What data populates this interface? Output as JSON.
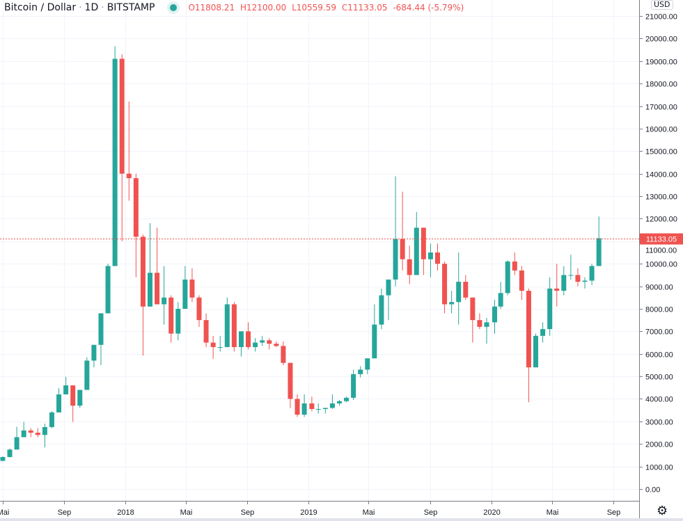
{
  "header": {
    "symbol": "Bitcoin / Dollar",
    "interval": "1D",
    "exchange": "BITSTAMP",
    "status_color": "#26a69a",
    "open": "O11808.21",
    "high": "H12100.00",
    "low": "L10559.59",
    "close": "C11133.05",
    "change": "-684.44 (-5.79%)"
  },
  "currency_button": "USD",
  "settings_icon": "gear-icon",
  "chart_data": {
    "type": "candlestick",
    "title": "Bitcoin / Dollar · 1D · BITSTAMP",
    "ylim": [
      0,
      21000
    ],
    "grid": true,
    "colors": {
      "up": "#26a69a",
      "down": "#ef5350",
      "price_line": "#ef5350"
    },
    "last_price": 11133.05,
    "last_price_label": "11133.05",
    "y_ticks": [
      "0.00",
      "1000.00",
      "2000.00",
      "3000.00",
      "4000.00",
      "5000.00",
      "6000.00",
      "7000.00",
      "8000.00",
      "9000.00",
      "10000.00",
      "11000.00",
      "12000.00",
      "13000.00",
      "14000.00",
      "15000.00",
      "16000.00",
      "17000.00",
      "18000.00",
      "19000.00",
      "20000.00",
      "21000.00"
    ],
    "y_tick_values": [
      0,
      1000,
      2000,
      3000,
      4000,
      5000,
      6000,
      7000,
      8000,
      9000,
      10000,
      11000,
      12000,
      13000,
      14000,
      15000,
      16000,
      17000,
      18000,
      19000,
      20000,
      21000
    ],
    "x_ticks": [
      {
        "label": "Mai",
        "date": "2017-05-01"
      },
      {
        "label": "Sep",
        "date": "2017-09-01"
      },
      {
        "label": "2018",
        "date": "2018-01-01"
      },
      {
        "label": "Mai",
        "date": "2018-05-01"
      },
      {
        "label": "Sep",
        "date": "2018-09-01"
      },
      {
        "label": "2019",
        "date": "2019-01-01"
      },
      {
        "label": "Mai",
        "date": "2019-05-01"
      },
      {
        "label": "Sep",
        "date": "2019-09-01"
      },
      {
        "label": "2020",
        "date": "2020-01-01"
      },
      {
        "label": "Mai",
        "date": "2020-05-01"
      },
      {
        "label": "Sep",
        "date": "2020-09-01"
      }
    ],
    "candles": [
      [
        "2017-04-24",
        1250,
        1450,
        1230,
        1420
      ],
      [
        "2017-05-08",
        1420,
        1800,
        1400,
        1750
      ],
      [
        "2017-05-22",
        1750,
        2760,
        1900,
        2300
      ],
      [
        "2017-06-05",
        2300,
        2980,
        2300,
        2600
      ],
      [
        "2017-06-19",
        2600,
        2700,
        2300,
        2500
      ],
      [
        "2017-07-03",
        2500,
        2700,
        2300,
        2400
      ],
      [
        "2017-07-17",
        2400,
        2900,
        1850,
        2750
      ],
      [
        "2017-07-31",
        2750,
        3450,
        2700,
        3400
      ],
      [
        "2017-08-14",
        3400,
        4480,
        3400,
        4200
      ],
      [
        "2017-08-28",
        4200,
        4980,
        4200,
        4600
      ],
      [
        "2017-09-11",
        4600,
        4600,
        2980,
        3700
      ],
      [
        "2017-09-25",
        3700,
        4400,
        3600,
        4400
      ],
      [
        "2017-10-09",
        4400,
        5850,
        4400,
        5700
      ],
      [
        "2017-10-23",
        5700,
        6400,
        5400,
        6400
      ],
      [
        "2017-11-06",
        6400,
        7600,
        5500,
        7800
      ],
      [
        "2017-11-20",
        7800,
        10000,
        7800,
        9900
      ],
      [
        "2017-12-04",
        9900,
        19660,
        9900,
        19100
      ],
      [
        "2017-12-18",
        19100,
        19300,
        11000,
        14000
      ],
      [
        "2018-01-01",
        14000,
        17200,
        12800,
        13800
      ],
      [
        "2018-01-15",
        13800,
        14000,
        9400,
        11200
      ],
      [
        "2018-01-29",
        11200,
        11300,
        5920,
        8100
      ],
      [
        "2018-02-12",
        8100,
        11800,
        8100,
        9600
      ],
      [
        "2018-02-26",
        9600,
        11600,
        8200,
        8200
      ],
      [
        "2018-03-12",
        8200,
        9900,
        7300,
        8500
      ],
      [
        "2018-03-26",
        8500,
        8600,
        6500,
        6900
      ],
      [
        "2018-04-09",
        6900,
        8300,
        6600,
        8000
      ],
      [
        "2018-04-23",
        8000,
        9900,
        8000,
        9300
      ],
      [
        "2018-05-07",
        9300,
        9800,
        8300,
        8500
      ],
      [
        "2018-05-21",
        8500,
        8600,
        7200,
        7500
      ],
      [
        "2018-06-04",
        7500,
        7800,
        6300,
        6500
      ],
      [
        "2018-06-18",
        6500,
        6800,
        5780,
        6300
      ],
      [
        "2018-07-02",
        6300,
        6800,
        6100,
        6300
      ],
      [
        "2018-07-16",
        6300,
        8500,
        6300,
        8200
      ],
      [
        "2018-07-30",
        8200,
        8300,
        6100,
        6300
      ],
      [
        "2018-08-13",
        6300,
        7000,
        5880,
        7000
      ],
      [
        "2018-08-27",
        7000,
        7400,
        6200,
        6300
      ],
      [
        "2018-09-10",
        6300,
        6700,
        6100,
        6500
      ],
      [
        "2018-09-24",
        6500,
        6800,
        6350,
        6600
      ],
      [
        "2018-10-08",
        6600,
        6700,
        6200,
        6450
      ],
      [
        "2018-10-22",
        6450,
        6550,
        6300,
        6350
      ],
      [
        "2018-11-05",
        6350,
        6550,
        5500,
        5600
      ],
      [
        "2018-11-19",
        5600,
        5600,
        3600,
        4000
      ],
      [
        "2018-12-03",
        4000,
        4200,
        3200,
        3300
      ],
      [
        "2018-12-17",
        3300,
        4200,
        3200,
        3800
      ],
      [
        "2019-01-01",
        3800,
        4100,
        3450,
        3550
      ],
      [
        "2019-01-14",
        3550,
        3800,
        3350,
        3550
      ],
      [
        "2019-01-28",
        3550,
        3600,
        3350,
        3600
      ],
      [
        "2019-02-11",
        3600,
        4200,
        3550,
        3800
      ],
      [
        "2019-02-25",
        3800,
        3950,
        3700,
        3900
      ],
      [
        "2019-03-11",
        3900,
        4100,
        3850,
        4050
      ],
      [
        "2019-03-25",
        4050,
        5300,
        3950,
        5100
      ],
      [
        "2019-04-08",
        5100,
        5450,
        4950,
        5300
      ],
      [
        "2019-04-22",
        5300,
        5800,
        5100,
        5800
      ],
      [
        "2019-05-06",
        5800,
        8200,
        5800,
        7300
      ],
      [
        "2019-05-20",
        7300,
        8900,
        7100,
        8600
      ],
      [
        "2019-06-03",
        8600,
        9300,
        7500,
        9300
      ],
      [
        "2019-06-17",
        9300,
        13880,
        9000,
        11100
      ],
      [
        "2019-07-01",
        11100,
        13200,
        9700,
        10200
      ],
      [
        "2019-07-15",
        10200,
        10800,
        9100,
        9500
      ],
      [
        "2019-07-29",
        9500,
        12300,
        9500,
        11600
      ],
      [
        "2019-08-12",
        11600,
        11600,
        9500,
        10200
      ],
      [
        "2019-08-26",
        10200,
        10900,
        9400,
        10500
      ],
      [
        "2019-09-09",
        10500,
        10900,
        9700,
        10000
      ],
      [
        "2019-09-23",
        10000,
        10100,
        7800,
        8200
      ],
      [
        "2019-10-07",
        8200,
        8800,
        7800,
        8300
      ],
      [
        "2019-10-21",
        8300,
        10500,
        7300,
        9200
      ],
      [
        "2019-11-04",
        9200,
        9500,
        8400,
        8500
      ],
      [
        "2019-11-18",
        8500,
        8500,
        6500,
        7500
      ],
      [
        "2019-12-02",
        7500,
        7800,
        7100,
        7200
      ],
      [
        "2019-12-16",
        7200,
        7600,
        6450,
        7400
      ],
      [
        "2020-01-01",
        7400,
        8400,
        6900,
        8100
      ],
      [
        "2020-01-13",
        8100,
        9200,
        8000,
        8700
      ],
      [
        "2020-01-27",
        8700,
        10150,
        8600,
        10100
      ],
      [
        "2020-02-10",
        10100,
        10500,
        9500,
        9700
      ],
      [
        "2020-02-24",
        9700,
        9900,
        8400,
        8800
      ],
      [
        "2020-03-09",
        8800,
        8900,
        3850,
        5400
      ],
      [
        "2020-03-23",
        5400,
        6900,
        5400,
        6800
      ],
      [
        "2020-04-06",
        6800,
        7400,
        6500,
        7100
      ],
      [
        "2020-04-20",
        7100,
        9400,
        6800,
        8900
      ],
      [
        "2020-05-04",
        8900,
        10000,
        8100,
        8800
      ],
      [
        "2020-05-18",
        8800,
        9900,
        8600,
        9500
      ],
      [
        "2020-06-01",
        9500,
        10400,
        9300,
        9500
      ],
      [
        "2020-06-15",
        9500,
        9800,
        9000,
        9200
      ],
      [
        "2020-06-29",
        9200,
        9400,
        8900,
        9250
      ],
      [
        "2020-07-13",
        9250,
        10000,
        9050,
        9900
      ],
      [
        "2020-07-27",
        9900,
        12100,
        9900,
        11133.05
      ]
    ]
  }
}
